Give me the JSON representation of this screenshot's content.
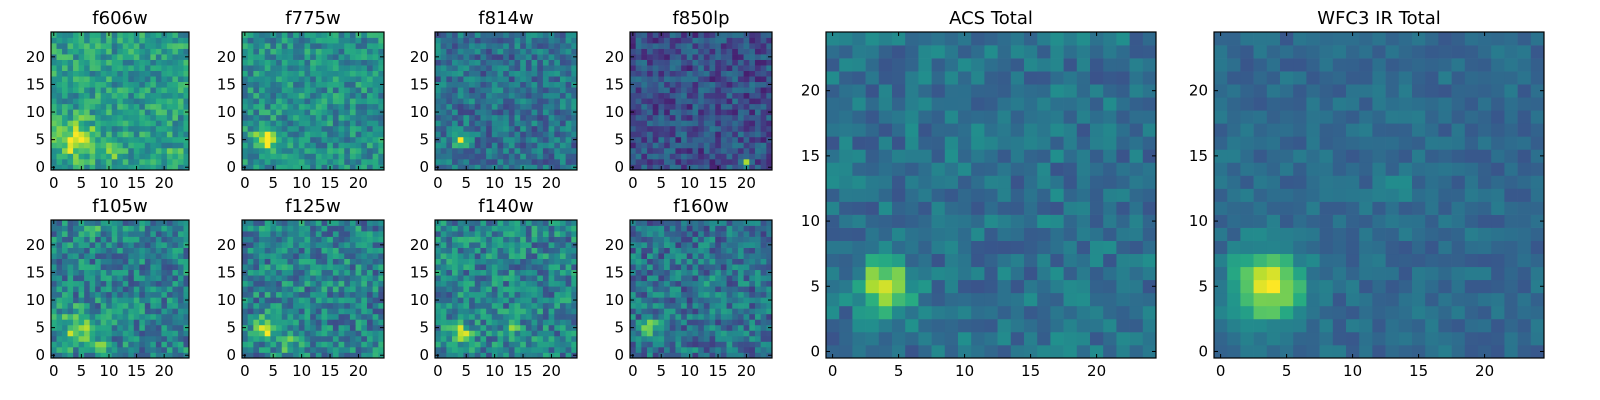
{
  "figure_title": "",
  "colormap": "viridis",
  "colors": {
    "low": "#440154",
    "mid": "#21918c",
    "high": "#fde725",
    "axis": "#000000"
  },
  "chart_data": [
    {
      "type": "heatmap",
      "title": "f606w",
      "grid": 25,
      "xlim": [
        -0.5,
        24.5
      ],
      "ylim": [
        -0.5,
        24.5
      ],
      "xticks": [
        0,
        5,
        10,
        15,
        20
      ],
      "yticks": [
        0,
        5,
        10,
        15,
        20
      ],
      "grid_lines": false,
      "background": 0.55,
      "hotspots": [
        {
          "x": 4,
          "y": 5,
          "amp": 0.4,
          "sigma": 2.4
        },
        {
          "x": 11,
          "y": 3,
          "amp": 0.15,
          "sigma": 1.5
        },
        {
          "x": 22,
          "y": 2,
          "amp": 0.15,
          "sigma": 1.2
        }
      ],
      "noise": 0.18,
      "seed": 11
    },
    {
      "type": "heatmap",
      "title": "f775w",
      "grid": 25,
      "xlim": [
        -0.5,
        24.5
      ],
      "ylim": [
        -0.5,
        24.5
      ],
      "xticks": [
        0,
        5,
        10,
        15,
        20
      ],
      "yticks": [
        0,
        5,
        10,
        15,
        20
      ],
      "grid_lines": false,
      "background": 0.5,
      "hotspots": [
        {
          "x": 4,
          "y": 5,
          "amp": 0.45,
          "sigma": 1.6
        }
      ],
      "noise": 0.18,
      "seed": 22
    },
    {
      "type": "heatmap",
      "title": "f814w",
      "grid": 25,
      "xlim": [
        -0.5,
        24.5
      ],
      "ylim": [
        -0.5,
        24.5
      ],
      "xticks": [
        0,
        5,
        10,
        15,
        20
      ],
      "yticks": [
        0,
        5,
        10,
        15,
        20
      ],
      "grid_lines": false,
      "background": 0.38,
      "hotspots": [
        {
          "x": 4,
          "y": 5,
          "amp": 0.5,
          "sigma": 1.0
        }
      ],
      "noise": 0.18,
      "seed": 33
    },
    {
      "type": "heatmap",
      "title": "f850lp",
      "grid": 25,
      "xlim": [
        -0.5,
        24.5
      ],
      "ylim": [
        -0.5,
        24.5
      ],
      "xticks": [
        0,
        5,
        10,
        15,
        20
      ],
      "yticks": [
        0,
        5,
        10,
        15,
        20
      ],
      "grid_lines": false,
      "background": 0.25,
      "hotspots": [
        {
          "x": 20,
          "y": 1,
          "amp": 0.75,
          "sigma": 0.5
        }
      ],
      "noise": 0.16,
      "seed": 44
    },
    {
      "type": "heatmap",
      "title": "f105w",
      "grid": 25,
      "xlim": [
        -0.5,
        24.5
      ],
      "ylim": [
        -0.5,
        24.5
      ],
      "xticks": [
        0,
        5,
        10,
        15,
        20
      ],
      "yticks": [
        0,
        5,
        10,
        15,
        20
      ],
      "grid_lines": false,
      "background": 0.45,
      "hotspots": [
        {
          "x": 4,
          "y": 5,
          "amp": 0.35,
          "sigma": 2.2
        },
        {
          "x": 7,
          "y": 23,
          "amp": 0.3,
          "sigma": 0.8
        },
        {
          "x": 8,
          "y": 2,
          "amp": 0.2,
          "sigma": 1.5
        }
      ],
      "noise": 0.22,
      "seed": 55
    },
    {
      "type": "heatmap",
      "title": "f125w",
      "grid": 25,
      "xlim": [
        -0.5,
        24.5
      ],
      "ylim": [
        -0.5,
        24.5
      ],
      "xticks": [
        0,
        5,
        10,
        15,
        20
      ],
      "yticks": [
        0,
        5,
        10,
        15,
        20
      ],
      "grid_lines": false,
      "background": 0.45,
      "hotspots": [
        {
          "x": 4,
          "y": 5,
          "amp": 0.4,
          "sigma": 1.5
        },
        {
          "x": 8,
          "y": 2,
          "amp": 0.2,
          "sigma": 1.5
        }
      ],
      "noise": 0.22,
      "seed": 66
    },
    {
      "type": "heatmap",
      "title": "f140w",
      "grid": 25,
      "xlim": [
        -0.5,
        24.5
      ],
      "ylim": [
        -0.5,
        24.5
      ],
      "xticks": [
        0,
        5,
        10,
        15,
        20
      ],
      "yticks": [
        0,
        5,
        10,
        15,
        20
      ],
      "grid_lines": false,
      "background": 0.45,
      "hotspots": [
        {
          "x": 4,
          "y": 4,
          "amp": 0.45,
          "sigma": 1.4
        },
        {
          "x": 13,
          "y": 5,
          "amp": 0.2,
          "sigma": 1.2
        }
      ],
      "noise": 0.22,
      "seed": 77
    },
    {
      "type": "heatmap",
      "title": "f160w",
      "grid": 25,
      "xlim": [
        -0.5,
        24.5
      ],
      "ylim": [
        -0.5,
        24.5
      ],
      "xticks": [
        0,
        5,
        10,
        15,
        20
      ],
      "yticks": [
        0,
        5,
        10,
        15,
        20
      ],
      "grid_lines": false,
      "background": 0.38,
      "hotspots": [
        {
          "x": 3,
          "y": 5,
          "amp": 0.55,
          "sigma": 1.0
        },
        {
          "x": 13,
          "y": 13,
          "amp": 0.35,
          "sigma": 0.7
        }
      ],
      "noise": 0.2,
      "seed": 88
    },
    {
      "type": "heatmap",
      "title": "ACS Total",
      "grid": 25,
      "xlim": [
        -0.5,
        24.5
      ],
      "ylim": [
        -0.5,
        24.5
      ],
      "xticks": [
        0,
        5,
        10,
        15,
        20
      ],
      "yticks": [
        0,
        5,
        10,
        15,
        20
      ],
      "grid_lines": false,
      "background": 0.38,
      "hotspots": [
        {
          "x": 4,
          "y": 5,
          "amp": 0.6,
          "sigma": 1.3
        }
      ],
      "noise": 0.12,
      "seed": 99
    },
    {
      "type": "heatmap",
      "title": "WFC3 IR Total",
      "grid": 25,
      "xlim": [
        -0.5,
        24.5
      ],
      "ylim": [
        -0.5,
        24.5
      ],
      "xticks": [
        0,
        5,
        10,
        15,
        20
      ],
      "yticks": [
        0,
        5,
        10,
        15,
        20
      ],
      "grid_lines": false,
      "background": 0.35,
      "hotspots": [
        {
          "x": 3.5,
          "y": 5,
          "amp": 0.62,
          "sigma": 1.9
        },
        {
          "x": 13,
          "y": 12.5,
          "amp": 0.15,
          "sigma": 0.8
        }
      ],
      "noise": 0.08,
      "seed": 111
    }
  ]
}
